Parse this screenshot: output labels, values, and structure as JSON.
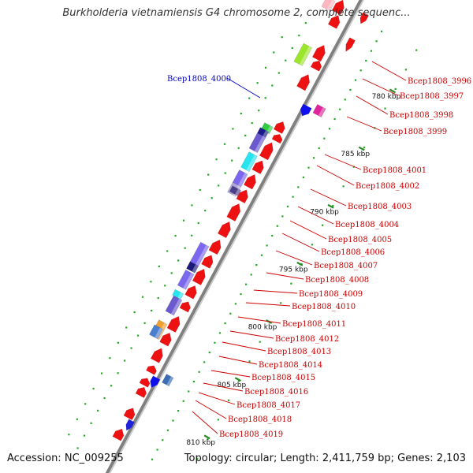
{
  "header": {
    "title": "Burkholderia vietnamiensis G4 chromosome 2, complete sequenc..."
  },
  "footer": {
    "accession_label": "Accession:",
    "accession": "NC_009255",
    "topology_label": "Topology:",
    "topology": "circular",
    "length_label": "Length:",
    "length": "2,411,759 bp",
    "genes_label": "Genes:",
    "genes": "2,103"
  },
  "scale": {
    "unit": "kbp",
    "ticks": [
      {
        "label": "780 kbp"
      },
      {
        "label": "785 kbp"
      },
      {
        "label": "790 kbp"
      },
      {
        "label": "795 kbp"
      },
      {
        "label": "800 kbp"
      },
      {
        "label": "805 kbp"
      },
      {
        "label": "810 kbp"
      }
    ]
  },
  "colors": {
    "cds": "#ee1111",
    "backbone": "#808080",
    "tick": "#228b22",
    "dot": "#22aa22",
    "label_red": "#cc0000",
    "label_blue": "#0000cc"
  },
  "genes": [
    {
      "label": "Bcep1808_3996",
      "color": "#ee1111"
    },
    {
      "label": "Bcep1808_3997",
      "color": "#ee1111"
    },
    {
      "label": "Bcep1808_3998",
      "color": "#ee1111"
    },
    {
      "label": "Bcep1808_3999",
      "color": "#ee1111"
    },
    {
      "label": "Bcep1808_4000",
      "color": "#0000cc"
    },
    {
      "label": "Bcep1808_4001",
      "color": "#ee1111"
    },
    {
      "label": "Bcep1808_4002",
      "color": "#ee1111"
    },
    {
      "label": "Bcep1808_4003",
      "color": "#ee1111"
    },
    {
      "label": "Bcep1808_4004",
      "color": "#ee1111"
    },
    {
      "label": "Bcep1808_4005",
      "color": "#ee1111"
    },
    {
      "label": "Bcep1808_4006",
      "color": "#ee1111"
    },
    {
      "label": "Bcep1808_4007",
      "color": "#ee1111"
    },
    {
      "label": "Bcep1808_4008",
      "color": "#ee1111"
    },
    {
      "label": "Bcep1808_4009",
      "color": "#ee1111"
    },
    {
      "label": "Bcep1808_4010",
      "color": "#ee1111"
    },
    {
      "label": "Bcep1808_4011",
      "color": "#ee1111"
    },
    {
      "label": "Bcep1808_4012",
      "color": "#ee1111"
    },
    {
      "label": "Bcep1808_4013",
      "color": "#ee1111"
    },
    {
      "label": "Bcep1808_4014",
      "color": "#ee1111"
    },
    {
      "label": "Bcep1808_4015",
      "color": "#ee1111"
    },
    {
      "label": "Bcep1808_4016",
      "color": "#ee1111"
    },
    {
      "label": "Bcep1808_4017",
      "color": "#ee1111"
    },
    {
      "label": "Bcep1808_4018",
      "color": "#ee1111"
    },
    {
      "label": "Bcep1808_4019",
      "color": "#ee1111"
    }
  ]
}
